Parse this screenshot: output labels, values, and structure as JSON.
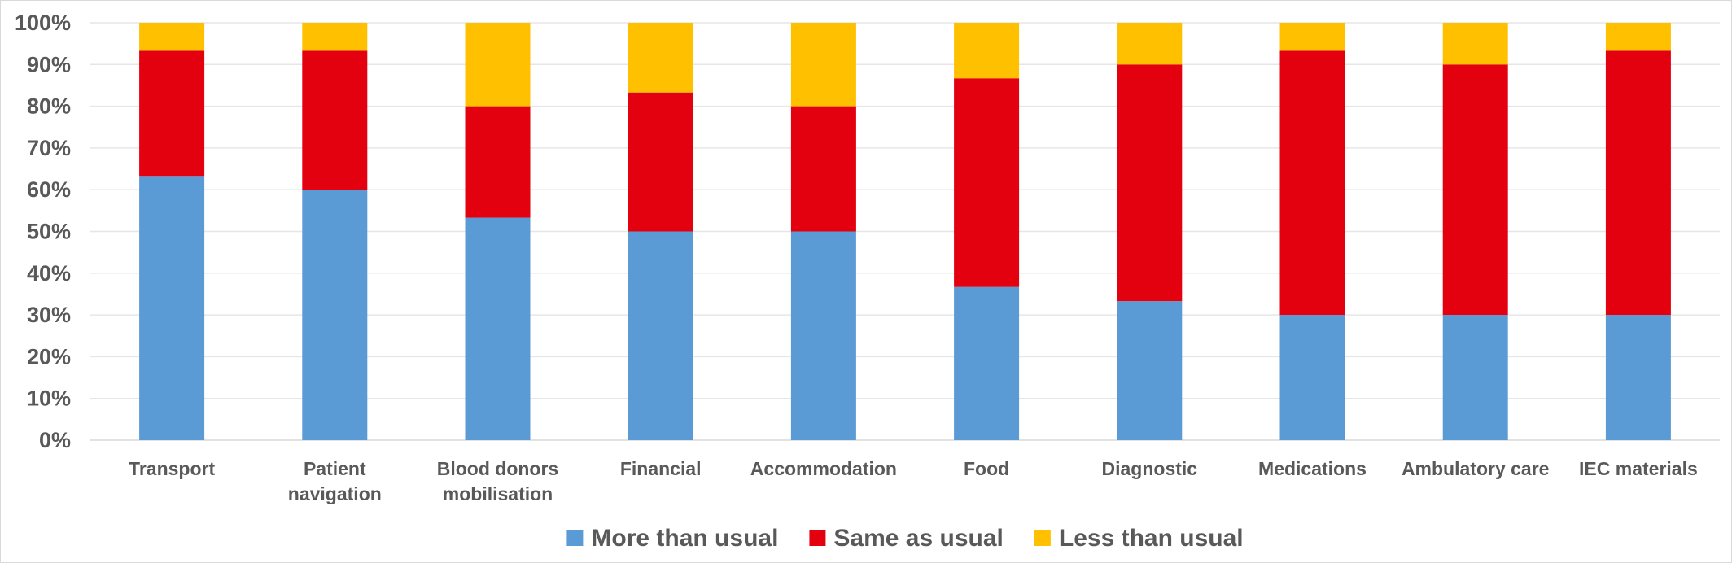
{
  "chart_data": {
    "type": "bar",
    "stacked": true,
    "percent": true,
    "categories": [
      [
        "Transport"
      ],
      [
        "Patient",
        "navigation"
      ],
      [
        "Blood donors",
        "mobilisation"
      ],
      [
        "Financial"
      ],
      [
        "Accommodation"
      ],
      [
        "Food"
      ],
      [
        "Diagnostic"
      ],
      [
        "Medications"
      ],
      [
        "Ambulatory care"
      ],
      [
        "IEC materials"
      ]
    ],
    "series": [
      {
        "name": "More than usual",
        "color": "#5b9bd5",
        "values": [
          63.3,
          60,
          53.3,
          50,
          50,
          36.7,
          33.3,
          30,
          30,
          30
        ]
      },
      {
        "name": "Same as usual",
        "color": "#e3000f",
        "values": [
          30,
          33.3,
          26.7,
          33.3,
          30,
          50,
          56.7,
          63.3,
          60,
          63.3
        ]
      },
      {
        "name": "Less than usual",
        "color": "#ffc000",
        "values": [
          6.7,
          6.7,
          20,
          16.7,
          20,
          13.3,
          10,
          6.7,
          10,
          6.7
        ]
      }
    ],
    "yticks": [
      "0%",
      "10%",
      "20%",
      "30%",
      "40%",
      "50%",
      "60%",
      "70%",
      "80%",
      "90%",
      "100%"
    ],
    "ylim": [
      0,
      100
    ],
    "grid": true,
    "legend": "bottom",
    "title": "",
    "xlabel": "",
    "ylabel": ""
  }
}
